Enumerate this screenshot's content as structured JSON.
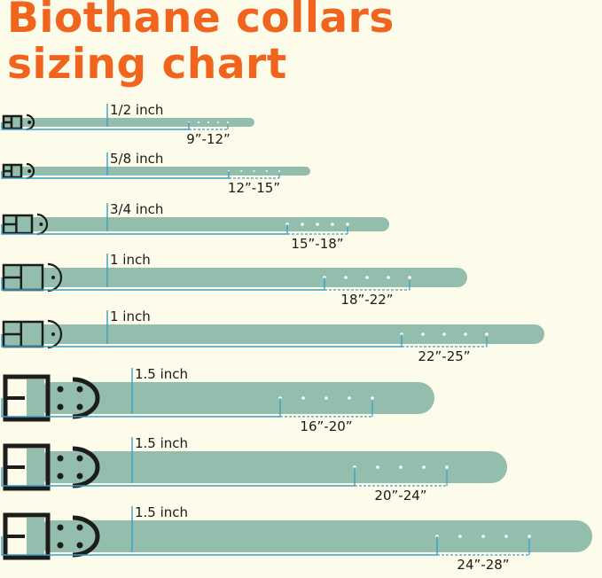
{
  "title_line1": "Biothane collars",
  "title_line2": "sizing chart",
  "colors": {
    "title": "#f0641e",
    "strap": "#93bdac",
    "measure_line": "#3a9fc6",
    "hardware": "#1c1c1c",
    "background": "#fdfbea"
  },
  "collars": [
    {
      "width_label": "1/2 inch",
      "size_range": "9”-12”"
    },
    {
      "width_label": "5/8 inch",
      "size_range": "12”-15”"
    },
    {
      "width_label": "3/4 inch",
      "size_range": "15”-18”"
    },
    {
      "width_label": "1 inch",
      "size_range": "18”-22”"
    },
    {
      "width_label": "1 inch",
      "size_range": "22”-25”"
    },
    {
      "width_label": "1.5 inch",
      "size_range": "16”-20”"
    },
    {
      "width_label": "1.5 inch",
      "size_range": "20”-24”"
    },
    {
      "width_label": "1.5 inch",
      "size_range": "24”-28”"
    }
  ]
}
